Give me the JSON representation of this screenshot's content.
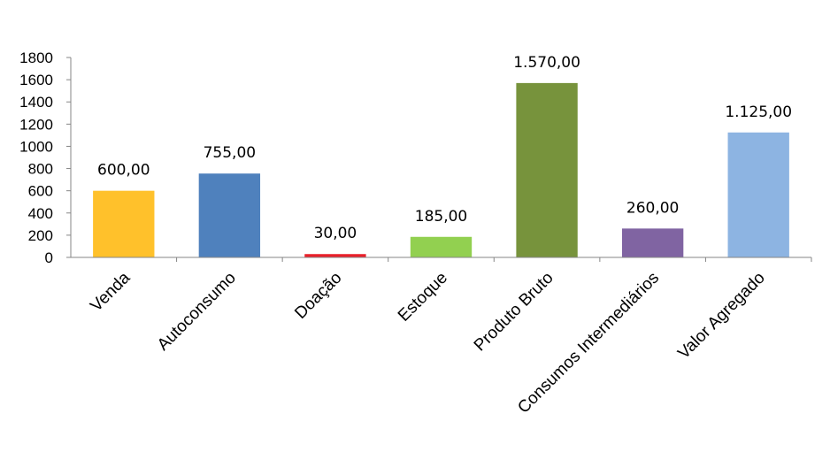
{
  "chart_data": {
    "type": "bar",
    "title": "",
    "xlabel": "",
    "ylabel": "",
    "ylim": [
      0,
      1800
    ],
    "yticks": [
      0,
      200,
      400,
      600,
      800,
      1000,
      1200,
      1400,
      1600,
      1800
    ],
    "grid": false,
    "legend": "none",
    "categories": [
      "Venda",
      "Autoconsumo",
      "Doação",
      "Estoque",
      "Produto Bruto",
      "Consumos Intermediários",
      "Valor Agregado"
    ],
    "values": [
      600,
      755,
      30,
      185,
      1570,
      260,
      1125
    ],
    "data_labels": [
      "600,00",
      "755,00",
      "30,00",
      "185,00",
      "1.570,00",
      "260,00",
      "1.125,00"
    ],
    "colors": [
      "#FFC12B",
      "#4F81BD",
      "#E8202A",
      "#92D050",
      "#77933C",
      "#8064A2",
      "#8DB4E2"
    ]
  }
}
